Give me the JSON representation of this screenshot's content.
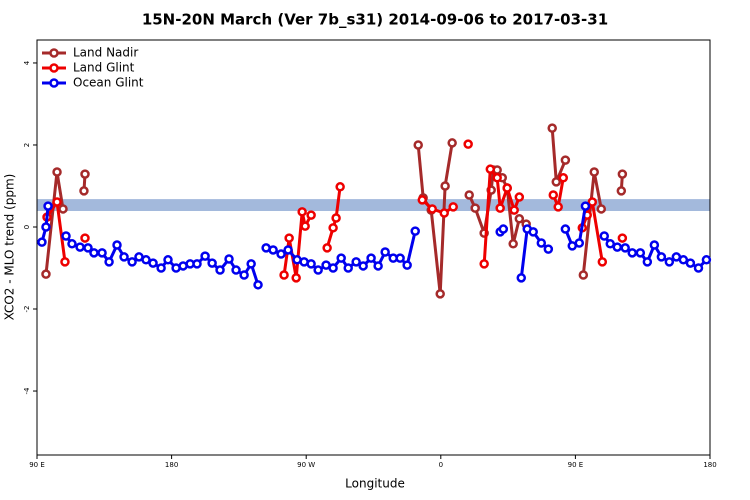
{
  "chart_data": {
    "type": "line",
    "title": "15N-20N March (Ver 7b_s31)   2014-09-06 to 2017-03-31",
    "xlabel": "Longitude",
    "ylabel": "XCO2 - MLO trend (ppm)",
    "xlim": [
      90,
      540
    ],
    "xticks": [
      {
        "value": 90,
        "label": "90 E"
      },
      180,
      {
        "value": 270,
        "label": "90 W"
      },
      {
        "value": 360,
        "label": "0"
      },
      {
        "value": 450,
        "label": "90 E"
      },
      {
        "value": 540,
        "label": "180"
      }
    ],
    "ylim": [
      -5.56,
      4.56
    ],
    "yticks": [
      -4,
      -2,
      0,
      2,
      4
    ],
    "band": [
      0.39,
      0.68
    ],
    "band_color": "#a3b9dc",
    "legend": "top-left",
    "series": [
      {
        "name": "Land Nadir",
        "color": "#a52a2a",
        "x": [
          96.0,
          103.4,
          107.4,
          null,
          121.4,
          122.1,
          null,
          344.9,
          348.2,
          353.6,
          359.6,
          362.9,
          367.6,
          null,
          379.0,
          383.0,
          389.0,
          393.7,
          395.1,
          397.7,
          401.1,
          404.4,
          408.4,
          412.5,
          417.1,
          null,
          434.5,
          437.2,
          443.3,
          null,
          455.3,
          462.6,
          467.3,
          null,
          480.7,
          481.4
        ],
        "values": [
          -1.15,
          1.34,
          0.44,
          null,
          0.88,
          1.29,
          null,
          2.0,
          0.71,
          0.41,
          -1.63,
          1.0,
          2.05,
          null,
          0.78,
          0.46,
          -0.15,
          0.9,
          1.39,
          1.39,
          1.2,
          0.95,
          -0.41,
          0.2,
          0.07,
          null,
          2.41,
          1.1,
          1.63,
          null,
          -1.17,
          1.34,
          0.44,
          null,
          0.88,
          1.29
        ]
      },
      {
        "name": "Land Glint",
        "color": "#ee0000",
        "x": [
          96.7,
          103.4,
          108.7,
          null,
          122.1,
          null,
          255.2,
          258.6,
          263.3,
          267.3,
          269.3,
          273.3,
          null,
          284.0,
          288.0,
          290.0,
          292.7,
          null,
          347.6,
          354.3,
          362.3,
          368.3,
          null,
          378.3,
          null,
          389.0,
          393.1,
          397.7,
          399.7,
          404.4,
          409.1,
          412.5,
          null,
          435.2,
          438.5,
          441.9,
          null,
          454.6,
          457.9,
          461.3,
          468.0,
          null,
          481.4
        ],
        "values": [
          0.24,
          0.61,
          -0.85,
          null,
          -0.27,
          null,
          -1.17,
          -0.27,
          -1.24,
          0.37,
          0.02,
          0.29,
          null,
          -0.51,
          -0.02,
          0.22,
          0.98,
          null,
          0.66,
          0.44,
          0.34,
          0.49,
          null,
          2.02,
          null,
          -0.9,
          1.41,
          1.2,
          0.46,
          0.95,
          0.41,
          0.73,
          null,
          0.78,
          0.49,
          1.2,
          null,
          -0.02,
          0.29,
          0.61,
          -0.85,
          null,
          -0.27
        ]
      },
      {
        "name": "Ocean Glint",
        "color": "#0000ee",
        "x": [
          93.3,
          96.0,
          97.4,
          null,
          109.4,
          113.4,
          118.8,
          124.1,
          128.1,
          133.5,
          138.2,
          143.5,
          148.2,
          153.6,
          158.2,
          162.9,
          167.6,
          173.0,
          177.6,
          183.0,
          187.7,
          192.4,
          197.0,
          202.4,
          207.1,
          212.4,
          218.4,
          223.1,
          228.5,
          233.2,
          237.8,
          null,
          243.2,
          247.9,
          253.2,
          257.9,
          263.9,
          268.6,
          273.3,
          278.0,
          283.3,
          288.0,
          293.4,
          298.1,
          303.4,
          308.1,
          313.4,
          318.1,
          322.8,
          328.2,
          332.8,
          337.5,
          342.9,
          null,
          399.7,
          401.8,
          null,
          413.8,
          417.8,
          421.8,
          427.2,
          431.9,
          null,
          443.3,
          447.9,
          452.6,
          456.7,
          null,
          469.3,
          473.3,
          478.0,
          483.3,
          488.0,
          493.4,
          498.1,
          502.8,
          507.5,
          512.8,
          517.5,
          522.2,
          526.9,
          532.3,
          537.6
        ],
        "values": [
          -0.37,
          0,
          0.51,
          null,
          -0.22,
          -0.41,
          -0.49,
          -0.51,
          -0.63,
          -0.63,
          -0.85,
          -0.44,
          -0.73,
          -0.85,
          -0.73,
          -0.8,
          -0.88,
          -1.0,
          -0.8,
          -1.0,
          -0.95,
          -0.9,
          -0.9,
          -0.71,
          -0.88,
          -1.05,
          -0.78,
          -1.05,
          -1.17,
          -0.9,
          -1.41,
          null,
          -0.51,
          -0.56,
          -0.66,
          -0.56,
          -0.8,
          -0.85,
          -0.9,
          -1.05,
          -0.93,
          -1.0,
          -0.76,
          -1.0,
          -0.85,
          -0.95,
          -0.76,
          -0.95,
          -0.61,
          -0.76,
          -0.76,
          -0.93,
          -0.1,
          null,
          -0.12,
          -0.05,
          null,
          -1.24,
          -0.05,
          -0.12,
          -0.39,
          -0.54,
          null,
          -0.05,
          -0.46,
          -0.39,
          0.51,
          null,
          -0.22,
          -0.41,
          -0.49,
          -0.51,
          -0.63,
          -0.63,
          -0.85,
          -0.44,
          -0.73,
          -0.85,
          -0.73,
          -0.8,
          -0.88,
          -1.0,
          -0.8
        ]
      }
    ]
  }
}
